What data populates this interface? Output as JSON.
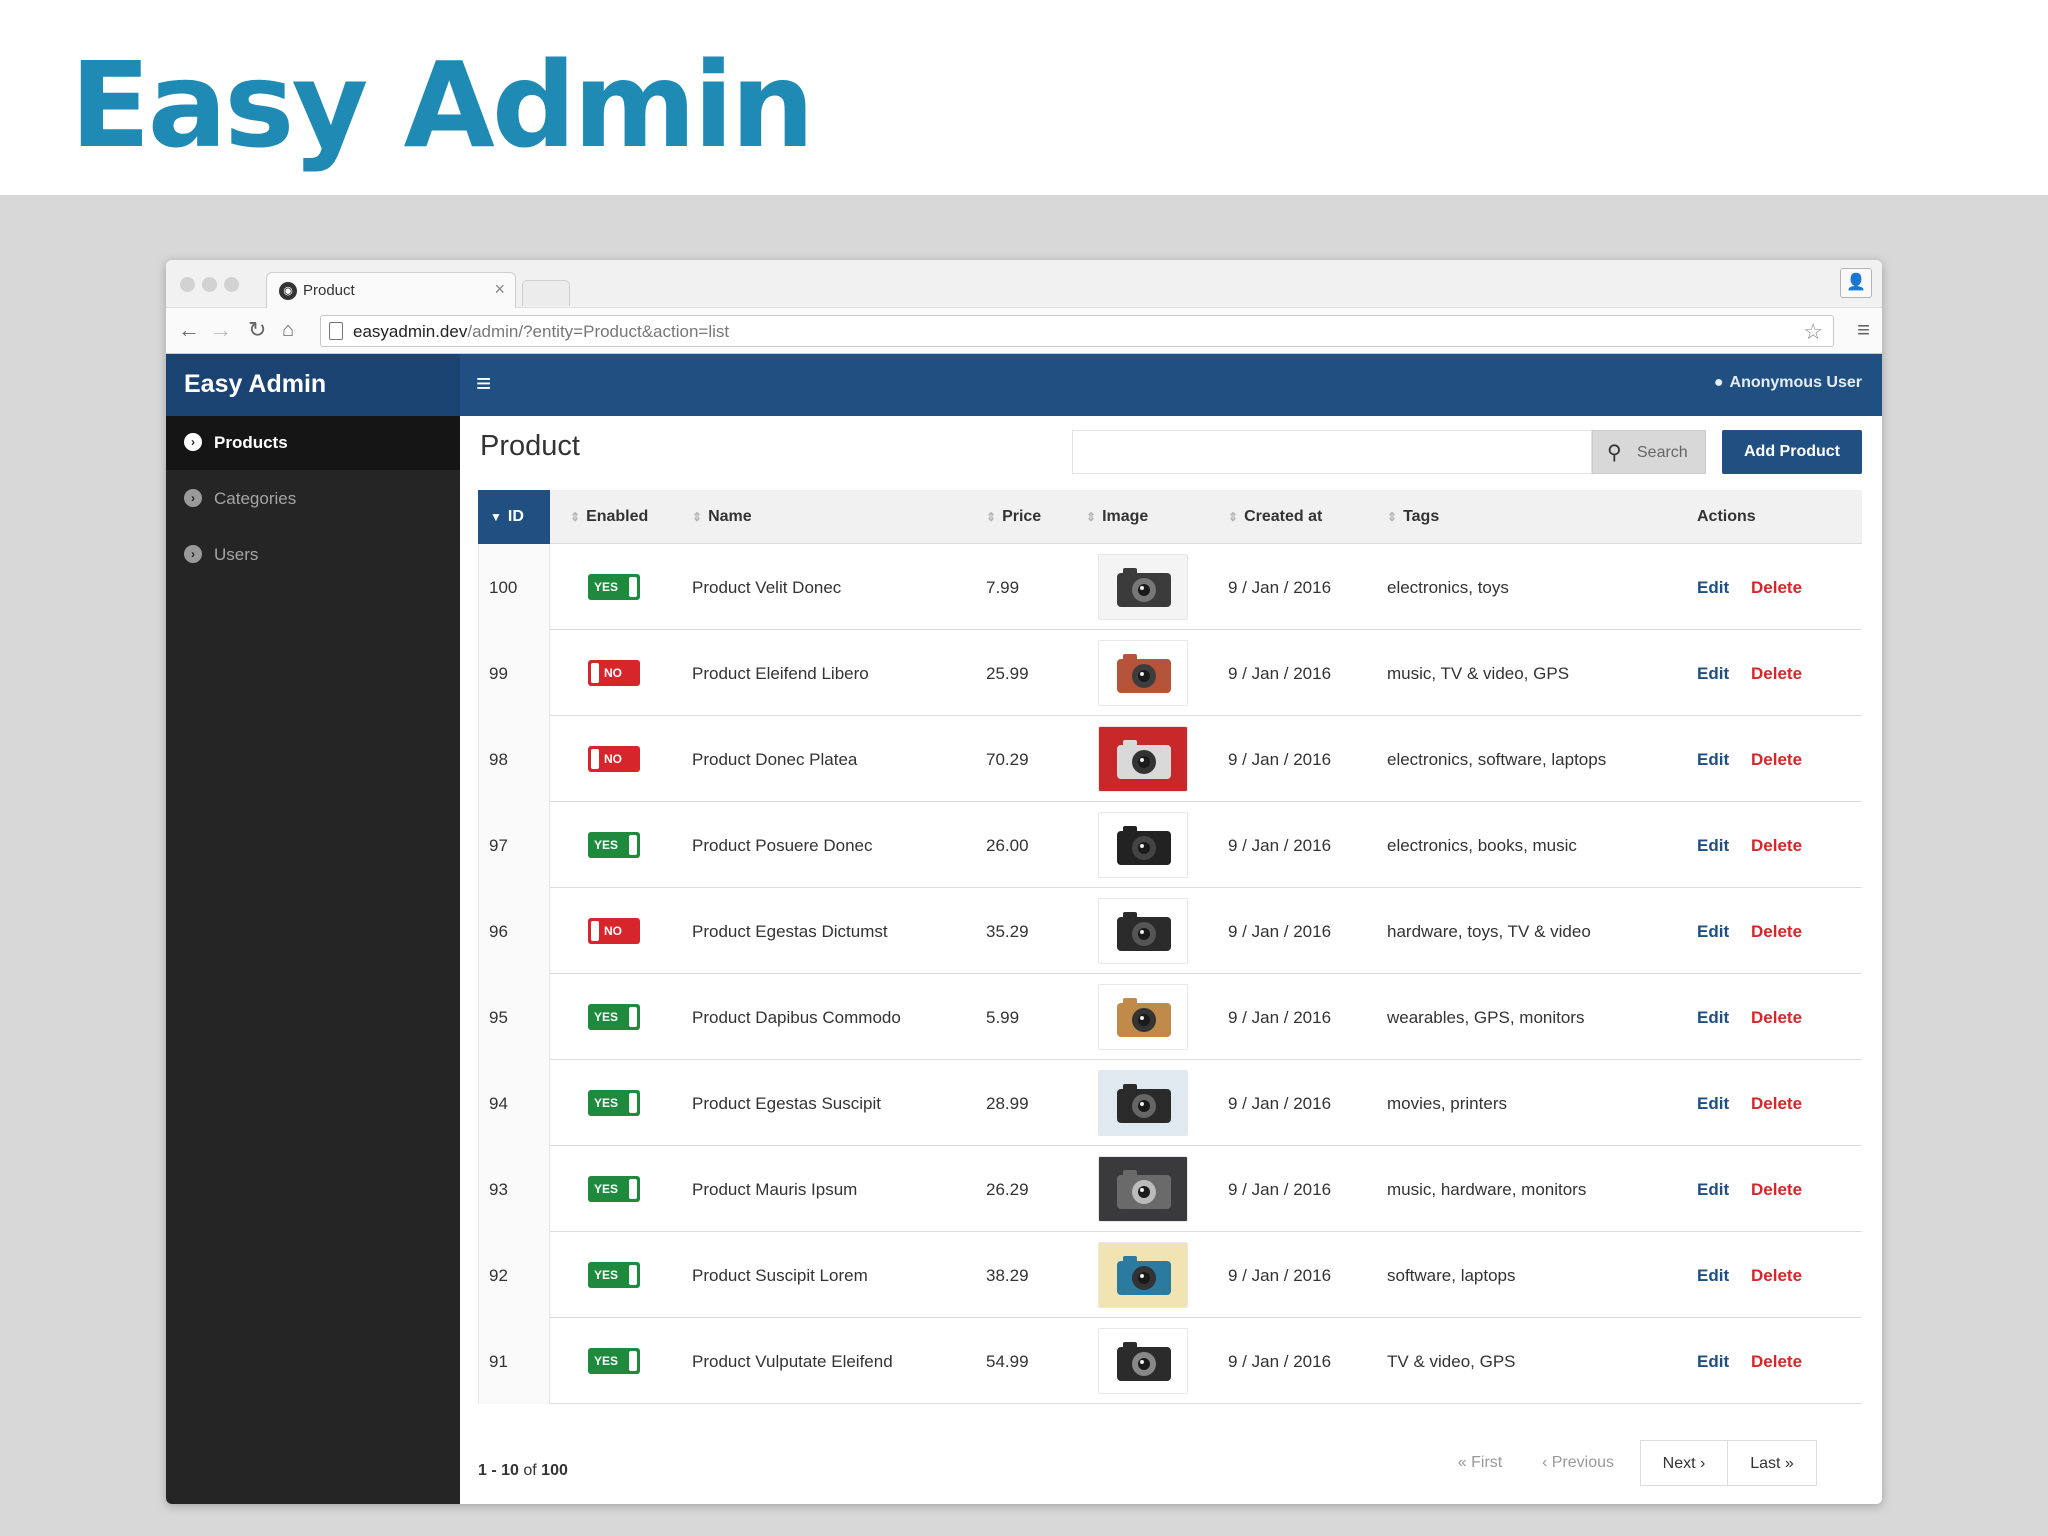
{
  "slide": {
    "title": "Easy Admin"
  },
  "browser": {
    "tab_title": "Product",
    "tab_close": "×",
    "url_host": "easyadmin.dev",
    "url_rest": "/admin/?entity=Product&action=list"
  },
  "app": {
    "brand": "Easy Admin",
    "user": "Anonymous User",
    "sidebar": {
      "items": [
        {
          "label": "Products",
          "active": true
        },
        {
          "label": "Categories",
          "active": false
        },
        {
          "label": "Users",
          "active": false
        }
      ]
    },
    "page_title": "Product",
    "search": {
      "button_label": "Search",
      "placeholder": ""
    },
    "add_button": "Add Product",
    "table": {
      "headers": {
        "id": "ID",
        "enabled": "Enabled",
        "name": "Name",
        "price": "Price",
        "image": "Image",
        "created_at": "Created at",
        "tags": "Tags",
        "actions": "Actions"
      },
      "rows": [
        {
          "id": "100",
          "enabled": "YES",
          "name": "Product Velit Donec",
          "price": "7.99",
          "created": "9 / Jan / 2016",
          "tags": "electronics, toys",
          "edit": "Edit",
          "delete": "Delete"
        },
        {
          "id": "99",
          "enabled": "NO",
          "name": "Product Eleifend Libero",
          "price": "25.99",
          "created": "9 / Jan / 2016",
          "tags": "music, TV & video, GPS",
          "edit": "Edit",
          "delete": "Delete"
        },
        {
          "id": "98",
          "enabled": "NO",
          "name": "Product Donec Platea",
          "price": "70.29",
          "created": "9 / Jan / 2016",
          "tags": "electronics, software, laptops",
          "edit": "Edit",
          "delete": "Delete"
        },
        {
          "id": "97",
          "enabled": "YES",
          "name": "Product Posuere Donec",
          "price": "26.00",
          "created": "9 / Jan / 2016",
          "tags": "electronics, books, music",
          "edit": "Edit",
          "delete": "Delete"
        },
        {
          "id": "96",
          "enabled": "NO",
          "name": "Product Egestas Dictumst",
          "price": "35.29",
          "created": "9 / Jan / 2016",
          "tags": "hardware, toys, TV & video",
          "edit": "Edit",
          "delete": "Delete"
        },
        {
          "id": "95",
          "enabled": "YES",
          "name": "Product Dapibus Commodo",
          "price": "5.99",
          "created": "9 / Jan / 2016",
          "tags": "wearables, GPS, monitors",
          "edit": "Edit",
          "delete": "Delete"
        },
        {
          "id": "94",
          "enabled": "YES",
          "name": "Product Egestas Suscipit",
          "price": "28.99",
          "created": "9 / Jan / 2016",
          "tags": "movies, printers",
          "edit": "Edit",
          "delete": "Delete"
        },
        {
          "id": "93",
          "enabled": "YES",
          "name": "Product Mauris Ipsum",
          "price": "26.29",
          "created": "9 / Jan / 2016",
          "tags": "music, hardware, monitors",
          "edit": "Edit",
          "delete": "Delete"
        },
        {
          "id": "92",
          "enabled": "YES",
          "name": "Product Suscipit Lorem",
          "price": "38.29",
          "created": "9 / Jan / 2016",
          "tags": "software, laptops",
          "edit": "Edit",
          "delete": "Delete"
        },
        {
          "id": "91",
          "enabled": "YES",
          "name": "Product Vulputate Eleifend",
          "price": "54.99",
          "created": "9 / Jan / 2016",
          "tags": "TV & video, GPS",
          "edit": "Edit",
          "delete": "Delete"
        }
      ]
    },
    "pagination": {
      "count_range": "1 - 10",
      "count_of": "of",
      "count_total": "100",
      "first": "« First",
      "previous": "‹ Previous",
      "next": "Next ›",
      "last": "Last »"
    },
    "colors": {
      "header": "#205081",
      "yes": "#1e8a3d",
      "no": "#d7262b"
    },
    "icons": {
      "menu": "hamburger-icon",
      "user": "user-icon",
      "search": "search-icon",
      "sidebar": "chevron-circle-right-icon",
      "sort": "sort-icon"
    }
  }
}
